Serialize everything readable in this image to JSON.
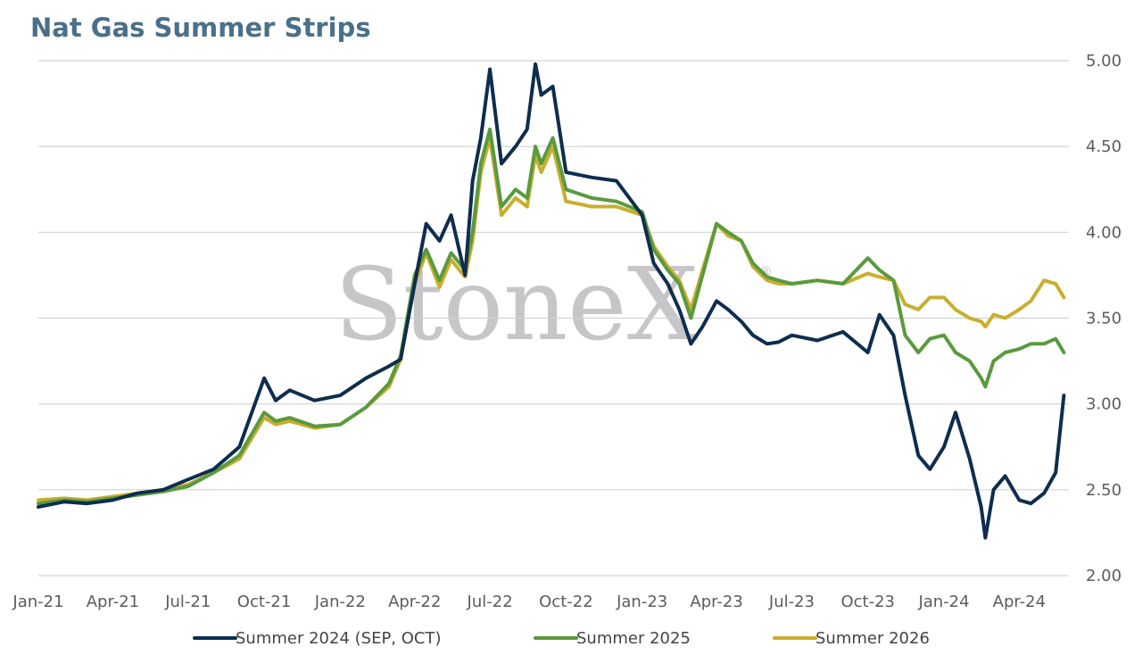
{
  "chart_data": {
    "type": "line",
    "title": "Nat Gas Summer Strips",
    "watermark": "StoneX",
    "xlabel": "",
    "ylabel": "",
    "xlim": [
      "2021-01-01",
      "2024-05-31"
    ],
    "ylim": [
      2.0,
      5.0
    ],
    "y_ticks": [
      "5.00",
      "4.50",
      "4.00",
      "3.50",
      "3.00",
      "2.50",
      "2.00"
    ],
    "x_ticks": [
      {
        "label": "Jan-21",
        "date": "2021-01-01"
      },
      {
        "label": "Apr-21",
        "date": "2021-04-01"
      },
      {
        "label": "Jul-21",
        "date": "2021-07-01"
      },
      {
        "label": "Oct-21",
        "date": "2021-10-01"
      },
      {
        "label": "Jan-22",
        "date": "2022-01-01"
      },
      {
        "label": "Apr-22",
        "date": "2022-04-01"
      },
      {
        "label": "Jul-22",
        "date": "2022-07-01"
      },
      {
        "label": "Oct-22",
        "date": "2022-10-01"
      },
      {
        "label": "Jan-23",
        "date": "2023-01-01"
      },
      {
        "label": "Apr-23",
        "date": "2023-04-01"
      },
      {
        "label": "Jul-23",
        "date": "2023-07-01"
      },
      {
        "label": "Oct-23",
        "date": "2023-10-01"
      },
      {
        "label": "Jan-24",
        "date": "2024-01-01"
      },
      {
        "label": "Apr-24",
        "date": "2024-04-01"
      }
    ],
    "grid": "horizontal",
    "axis_position": "right",
    "legend_position": "bottom",
    "x": [
      "2021-01-01",
      "2021-02-01",
      "2021-03-01",
      "2021-04-01",
      "2021-05-01",
      "2021-06-01",
      "2021-07-01",
      "2021-08-01",
      "2021-09-01",
      "2021-10-01",
      "2021-10-15",
      "2021-11-01",
      "2021-12-01",
      "2022-01-01",
      "2022-02-01",
      "2022-03-01",
      "2022-03-15",
      "2022-04-01",
      "2022-04-15",
      "2022-05-01",
      "2022-05-15",
      "2022-06-01",
      "2022-06-10",
      "2022-06-20",
      "2022-07-01",
      "2022-07-15",
      "2022-08-01",
      "2022-08-15",
      "2022-08-25",
      "2022-09-01",
      "2022-09-15",
      "2022-10-01",
      "2022-11-01",
      "2022-12-01",
      "2023-01-01",
      "2023-01-15",
      "2023-02-01",
      "2023-02-15",
      "2023-03-01",
      "2023-03-15",
      "2023-04-01",
      "2023-04-15",
      "2023-05-01",
      "2023-05-15",
      "2023-06-01",
      "2023-06-15",
      "2023-07-01",
      "2023-08-01",
      "2023-09-01",
      "2023-10-01",
      "2023-10-15",
      "2023-11-01",
      "2023-11-15",
      "2023-12-01",
      "2023-12-15",
      "2024-01-01",
      "2024-01-15",
      "2024-02-01",
      "2024-02-15",
      "2024-02-20",
      "2024-03-01",
      "2024-03-15",
      "2024-04-01",
      "2024-04-15",
      "2024-05-01",
      "2024-05-15",
      "2024-05-25"
    ],
    "series": [
      {
        "name": "Summer 2024 (SEP, OCT)",
        "color": "#0e2d4f",
        "values": [
          2.4,
          2.43,
          2.42,
          2.44,
          2.48,
          2.5,
          2.56,
          2.62,
          2.75,
          3.15,
          3.02,
          3.08,
          3.02,
          3.05,
          3.15,
          3.22,
          3.26,
          3.7,
          4.05,
          3.95,
          4.1,
          3.75,
          4.3,
          4.55,
          4.95,
          4.4,
          4.5,
          4.6,
          4.98,
          4.8,
          4.85,
          4.35,
          4.32,
          4.3,
          4.1,
          3.82,
          3.7,
          3.55,
          3.35,
          3.45,
          3.6,
          3.55,
          3.48,
          3.4,
          3.35,
          3.36,
          3.4,
          3.37,
          3.42,
          3.3,
          3.52,
          3.4,
          3.05,
          2.7,
          2.62,
          2.75,
          2.95,
          2.68,
          2.4,
          2.22,
          2.5,
          2.58,
          2.44,
          2.42,
          2.48,
          2.6,
          3.05
        ]
      },
      {
        "name": "Summer 2025",
        "color": "#5a9a3e",
        "values": [
          2.42,
          2.44,
          2.43,
          2.45,
          2.47,
          2.49,
          2.52,
          2.6,
          2.7,
          2.95,
          2.9,
          2.92,
          2.87,
          2.88,
          2.98,
          3.12,
          3.28,
          3.75,
          3.9,
          3.72,
          3.88,
          3.78,
          4.0,
          4.4,
          4.6,
          4.15,
          4.25,
          4.2,
          4.5,
          4.4,
          4.55,
          4.25,
          4.2,
          4.18,
          4.12,
          3.9,
          3.78,
          3.7,
          3.5,
          3.75,
          4.05,
          4.0,
          3.95,
          3.82,
          3.74,
          3.72,
          3.7,
          3.72,
          3.7,
          3.85,
          3.78,
          3.72,
          3.4,
          3.3,
          3.38,
          3.4,
          3.3,
          3.25,
          3.15,
          3.1,
          3.25,
          3.3,
          3.32,
          3.35,
          3.35,
          3.38,
          3.3
        ]
      },
      {
        "name": "Summer 2026",
        "color": "#c9ae2e",
        "values": [
          2.44,
          2.45,
          2.44,
          2.46,
          2.48,
          2.5,
          2.53,
          2.6,
          2.68,
          2.92,
          2.88,
          2.9,
          2.86,
          2.88,
          2.98,
          3.1,
          3.26,
          3.7,
          3.88,
          3.68,
          3.84,
          3.74,
          3.95,
          4.35,
          4.55,
          4.1,
          4.2,
          4.15,
          4.45,
          4.35,
          4.5,
          4.18,
          4.15,
          4.15,
          4.1,
          3.92,
          3.8,
          3.72,
          3.55,
          3.78,
          4.05,
          3.98,
          3.95,
          3.8,
          3.72,
          3.7,
          3.7,
          3.72,
          3.7,
          3.76,
          3.74,
          3.72,
          3.58,
          3.55,
          3.62,
          3.62,
          3.55,
          3.5,
          3.48,
          3.45,
          3.52,
          3.5,
          3.55,
          3.6,
          3.72,
          3.7,
          3.62
        ]
      }
    ]
  }
}
